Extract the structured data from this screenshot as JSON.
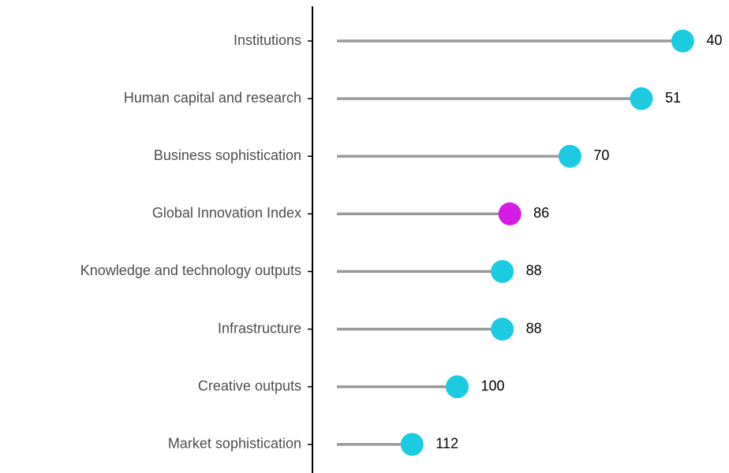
{
  "chart_data": {
    "type": "lollipop",
    "orientation": "horizontal",
    "categories": [
      "Institutions",
      "Human capital and research",
      "Business sophistication",
      "Global Innovation Index",
      "Knowledge and technology outputs",
      "Infrastructure",
      "Creative outputs",
      "Market sophistication"
    ],
    "values": [
      40,
      51,
      70,
      86,
      88,
      88,
      100,
      112
    ],
    "colors": [
      "#1ccbe0",
      "#1ccbe0",
      "#1ccbe0",
      "#d41ce4",
      "#1ccbe0",
      "#1ccbe0",
      "#1ccbe0",
      "#1ccbe0"
    ],
    "stem_color": "#999999",
    "xlim": [
      132,
      30
    ]
  }
}
